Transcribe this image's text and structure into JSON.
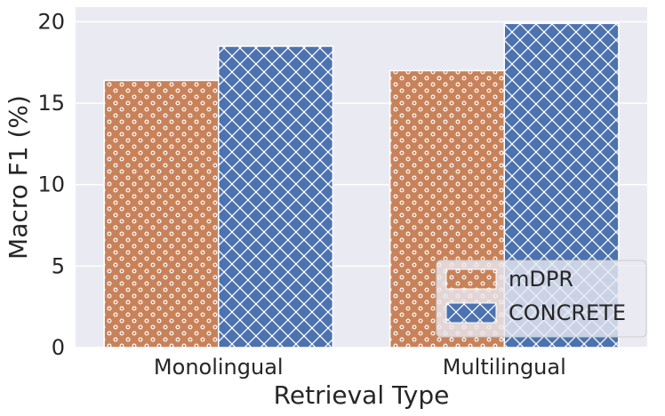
{
  "chart_data": {
    "type": "bar",
    "xlabel": "Retrieval Type",
    "ylabel": "Macro F1 (%)",
    "categories": [
      "Monolingual",
      "Multilingual"
    ],
    "series": [
      {
        "name": "mDPR",
        "values": [
          16.4,
          17.0
        ],
        "color": "#c8825a",
        "pattern": "dots"
      },
      {
        "name": "CONCRETE",
        "values": [
          18.5,
          19.9
        ],
        "color": "#4c72b0",
        "pattern": "crosshatch"
      }
    ],
    "ylim": [
      0,
      20.9
    ],
    "yticks": [
      0,
      5,
      10,
      15,
      20
    ],
    "grid": true,
    "legend_position": "lower-right",
    "background": "#eaeaf2"
  }
}
